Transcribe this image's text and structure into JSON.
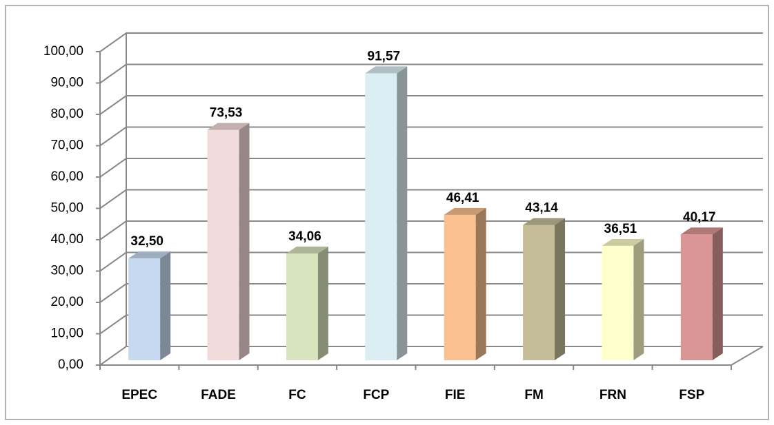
{
  "chart_data": {
    "type": "bar3d",
    "categories": [
      "EPEC",
      "FADE",
      "FC",
      "FCP",
      "FIE",
      "FM",
      "FRN",
      "FSP"
    ],
    "values": [
      32.5,
      73.53,
      34.06,
      91.57,
      46.41,
      43.14,
      36.51,
      40.17
    ],
    "value_labels": [
      "32,50",
      "73,53",
      "34,06",
      "91,57",
      "46,41",
      "43,14",
      "36,51",
      "40,17"
    ],
    "colors": [
      "#c6d9f1",
      "#f2dcdb",
      "#d7e4bd",
      "#dbeef4",
      "#fac090",
      "#c4bd97",
      "#ffffcc",
      "#d99694"
    ],
    "ylim": [
      0,
      100
    ],
    "yticks": [
      {
        "value": 0,
        "label": "0,00"
      },
      {
        "value": 10,
        "label": "10,00"
      },
      {
        "value": 20,
        "label": "20,00"
      },
      {
        "value": 30,
        "label": "30,00"
      },
      {
        "value": 40,
        "label": "40,00"
      },
      {
        "value": 50,
        "label": "50,00"
      },
      {
        "value": 60,
        "label": "60,00"
      },
      {
        "value": 70,
        "label": "70,00"
      },
      {
        "value": 80,
        "label": "80,00"
      },
      {
        "value": 90,
        "label": "90,00"
      },
      {
        "value": 100,
        "label": "100,00"
      }
    ],
    "grid": true
  }
}
